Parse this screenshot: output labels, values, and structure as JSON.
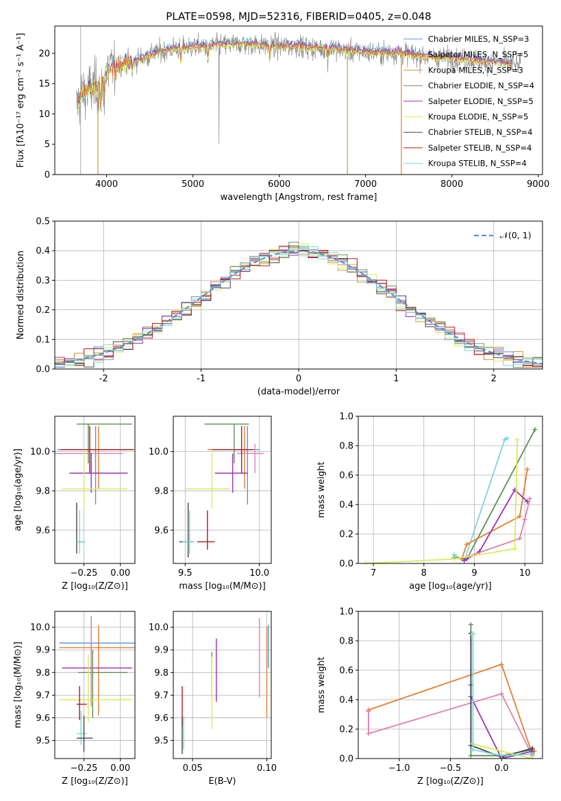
{
  "figure_title": "PLATE=0598, MJD=52316, FIBERID=0405, z=0.048",
  "colors": {
    "chabrier_miles": "#5B8FD9",
    "salpeter_miles": "#E07F2E",
    "kroupa_miles": "#C99A3A",
    "chabrier_elodie": "#5E8C55",
    "salpeter_elodie": "#9B2FB8",
    "kroupa_elodie": "#D9EC55",
    "chabrier_stelib": "#444444",
    "salpeter_stelib": "#B01818",
    "kroupa_stelib": "#7BD6DA",
    "pink": "#E07FB0",
    "data_gray": "#888888",
    "normal_curve": "#5B8FD9"
  },
  "chart_data": [
    {
      "id": "spectrum",
      "type": "line",
      "title": "PLATE=0598, MJD=52316, FIBERID=0405, z=0.048",
      "xlabel": "wavelength [Angstrom, rest frame]",
      "ylabel": "Flux [fλ10⁻¹⁷ erg cm⁻² s⁻¹ A⁻¹]",
      "xlim": [
        3400,
        9050
      ],
      "ylim": [
        0,
        24.5
      ],
      "xticks": [
        4000,
        5000,
        6000,
        7000,
        8000,
        9000
      ],
      "yticks": [
        0,
        5,
        10,
        15,
        20
      ],
      "legend_position": "right",
      "legend": [
        {
          "name": "Chabrier MILES, N_SSP=3",
          "color_key": "chabrier_miles"
        },
        {
          "name": "Salpeter MILES, N_SSP=5",
          "color_key": "salpeter_miles"
        },
        {
          "name": "Kroupa MILES, N_SSP=3",
          "color_key": "kroupa_miles"
        },
        {
          "name": "Chabrier ELODIE, N_SSP=4",
          "color_key": "chabrier_elodie"
        },
        {
          "name": "Salpeter ELODIE, N_SSP=5",
          "color_key": "salpeter_elodie"
        },
        {
          "name": "Kroupa ELODIE, N_SSP=5",
          "color_key": "kroupa_elodie"
        },
        {
          "name": "Chabrier STELIB, N_SSP=4",
          "color_key": "chabrier_stelib"
        },
        {
          "name": "Salpeter STELIB, N_SSP=4",
          "color_key": "salpeter_stelib"
        },
        {
          "name": "Kroupa STELIB, N_SSP=4",
          "color_key": "kroupa_stelib"
        }
      ],
      "continuum": {
        "x": [
          3650,
          3700,
          3800,
          3900,
          4000,
          4100,
          4200,
          4300,
          4400,
          4600,
          4800,
          5000,
          5200,
          5400,
          5600,
          5800,
          6000,
          6200,
          6400,
          6600,
          6800,
          7000,
          7200,
          7400,
          7600,
          7800,
          8000,
          8200,
          8400,
          8600,
          8800
        ],
        "y": [
          11,
          13,
          14,
          14.5,
          17,
          18,
          18.3,
          18.6,
          19.2,
          20.2,
          20.8,
          21,
          21.2,
          21.4,
          21.5,
          21.3,
          21.1,
          21.2,
          20.8,
          20.8,
          20.4,
          20.2,
          20.1,
          20.1,
          19.6,
          19.3,
          19.2,
          18.9,
          18.6,
          18.4,
          18
        ]
      },
      "spikes": [
        {
          "x": 3900,
          "y": 0,
          "color_key": "kroupa_miles"
        },
        {
          "x": 6790,
          "y": 0,
          "color_key": "kroupa_miles"
        },
        {
          "x": 7415,
          "y": 0,
          "color_key": "salpeter_miles"
        }
      ]
    },
    {
      "id": "residuals",
      "type": "histogram",
      "xlabel": "(data-model)/error",
      "ylabel": "Normed distribution",
      "xlim": [
        -2.5,
        2.5
      ],
      "ylim": [
        0,
        0.5
      ],
      "xticks": [
        -2,
        -1,
        0,
        1,
        2
      ],
      "yticks": [
        0.0,
        0.1,
        0.2,
        0.3,
        0.4,
        0.5
      ],
      "grid": true,
      "bin_width": 0.1,
      "legend": [
        {
          "name": "𝒩(0, 1)",
          "color_key": "normal_curve",
          "style": "dashed"
        }
      ],
      "legend_position": "top-right",
      "series_color_keys": [
        "chabrier_miles",
        "salpeter_miles",
        "kroupa_miles",
        "chabrier_elodie",
        "salpeter_elodie",
        "kroupa_elodie",
        "chabrier_stelib",
        "salpeter_stelib",
        "kroupa_stelib"
      ]
    },
    {
      "id": "z_vs_age",
      "type": "errorbar",
      "xlabel": "Z [log₁₀(Z/Z⊙)]",
      "ylabel": "age  [log₁₀(age/yr)]",
      "xlim": [
        -0.45,
        0.1
      ],
      "ylim": [
        9.43,
        10.18
      ],
      "xticks": [
        -0.25,
        0.0
      ],
      "xtick_labels": [
        "−0.25",
        "0.00"
      ],
      "yticks": [
        9.6,
        9.8,
        10.0
      ],
      "yerr_ticks": [
        9.6,
        9.8,
        10.0
      ],
      "grid": true,
      "points": [
        {
          "x": -0.22,
          "y": 10.14,
          "xerr": [
            0.08,
            0.3
          ],
          "yerr": [
            0.2,
            0.0
          ],
          "color_key": "chabrier_elodie"
        },
        {
          "x": -0.15,
          "y": 10.01,
          "xerr": [
            0.28,
            0.25
          ],
          "yerr": [
            0.2,
            0.12
          ],
          "color_key": "salpeter_miles"
        },
        {
          "x": -0.17,
          "y": 10.01,
          "xerr": [
            0.26,
            0.22
          ],
          "yerr": [
            0.28,
            0.12
          ],
          "color_key": "chabrier_miles"
        },
        {
          "x": -0.2,
          "y": 9.99,
          "xerr": [
            0.25,
            0.22
          ],
          "yerr": [
            0.1,
            0.0
          ],
          "color_key": "pink"
        },
        {
          "x": -0.21,
          "y": 10.01,
          "xerr": [
            0.2,
            0.3
          ],
          "yerr": [
            0.12,
            0.12
          ],
          "color_key": "salpeter_stelib"
        },
        {
          "x": -0.2,
          "y": 9.89,
          "xerr": [
            0.15,
            0.25
          ],
          "yerr": [
            0.1,
            0.1
          ],
          "color_key": "salpeter_elodie"
        },
        {
          "x": -0.25,
          "y": 9.81,
          "xerr": [
            0.15,
            0.3
          ],
          "yerr": [
            0.1,
            0.2
          ],
          "color_key": "kroupa_elodie"
        },
        {
          "x": -0.3,
          "y": 9.54,
          "xerr": [
            0.0,
            0.05
          ],
          "yerr": [
            0.06,
            0.2
          ],
          "color_key": "chabrier_stelib"
        },
        {
          "x": -0.28,
          "y": 9.54,
          "xerr": [
            0.02,
            0.04
          ],
          "yerr": [
            0.06,
            0.16
          ],
          "color_key": "kroupa_stelib"
        }
      ]
    },
    {
      "id": "mass_vs_age",
      "type": "errorbar",
      "xlabel": "mass [log₁₀(M/M⊙)]",
      "ylabel": "",
      "xlim": [
        9.42,
        10.08
      ],
      "ylim": [
        9.43,
        10.18
      ],
      "xticks": [
        9.5,
        10.0
      ],
      "xtick_labels": [
        "9.5",
        "10.0"
      ],
      "yticks": [
        9.6,
        9.8,
        10.0
      ],
      "grid": true,
      "points": [
        {
          "x": 9.83,
          "y": 10.14,
          "xerr": [
            0.2,
            0.1
          ],
          "yerr": [
            0.2,
            0.0
          ],
          "color_key": "chabrier_elodie"
        },
        {
          "x": 9.9,
          "y": 10.01,
          "xerr": [
            0.25,
            0.05
          ],
          "yerr": [
            0.2,
            0.12
          ],
          "color_key": "salpeter_miles"
        },
        {
          "x": 9.92,
          "y": 10.01,
          "xerr": [
            0.2,
            0.08
          ],
          "yerr": [
            0.28,
            0.12
          ],
          "color_key": "chabrier_miles"
        },
        {
          "x": 9.97,
          "y": 9.99,
          "xerr": [
            0.12,
            0.06
          ],
          "yerr": [
            0.1,
            0.05
          ],
          "color_key": "pink"
        },
        {
          "x": 9.88,
          "y": 10.01,
          "xerr": [
            0.2,
            0.08
          ],
          "yerr": [
            0.12,
            0.12
          ],
          "color_key": "salpeter_stelib"
        },
        {
          "x": 9.82,
          "y": 9.89,
          "xerr": [
            0.12,
            0.1
          ],
          "yerr": [
            0.1,
            0.1
          ],
          "color_key": "salpeter_elodie"
        },
        {
          "x": 9.68,
          "y": 9.81,
          "xerr": [
            0.18,
            0.12
          ],
          "yerr": [
            0.1,
            0.2
          ],
          "color_key": "kroupa_elodie"
        },
        {
          "x": 9.65,
          "y": 9.54,
          "xerr": [
            0.07,
            0.05
          ],
          "yerr": [
            0.04,
            0.16
          ],
          "color_key": "salpeter_stelib"
        },
        {
          "x": 9.52,
          "y": 9.54,
          "xerr": [
            0.06,
            0.04
          ],
          "yerr": [
            0.08,
            0.2
          ],
          "color_key": "chabrier_stelib"
        },
        {
          "x": 9.53,
          "y": 9.54,
          "xerr": [
            0.05,
            0.03
          ],
          "yerr": [
            0.06,
            0.16
          ],
          "color_key": "kroupa_stelib"
        }
      ]
    },
    {
      "id": "age_mass_weight",
      "type": "line",
      "xlabel": "age  [log₁₀(age/yr)]",
      "ylabel": "mass weight",
      "xlim": [
        6.7,
        10.35
      ],
      "ylim": [
        0,
        1
      ],
      "xticks": [
        7,
        8,
        9,
        10
      ],
      "yticks": [
        0.0,
        0.2,
        0.4,
        0.6,
        0.8,
        1.0
      ],
      "grid": true,
      "series": [
        {
          "color_key": "kroupa_stelib",
          "x": [
            8.6,
            8.8,
            9.6,
            9.65
          ],
          "y": [
            0.06,
            0.02,
            0.84,
            0.85
          ]
        },
        {
          "color_key": "chabrier_elodie",
          "x": [
            8.6,
            8.85,
            10.2
          ],
          "y": [
            0.04,
            0.03,
            0.91
          ]
        },
        {
          "color_key": "salpeter_miles",
          "x": [
            8.75,
            8.85,
            9.9,
            10.05
          ],
          "y": [
            0.03,
            0.13,
            0.32,
            0.64
          ]
        },
        {
          "color_key": "salpeter_elodie",
          "x": [
            8.8,
            9.1,
            9.8,
            10.05
          ],
          "y": [
            0.02,
            0.08,
            0.5,
            0.42
          ]
        },
        {
          "color_key": "pink",
          "x": [
            8.9,
            9.9,
            10.0,
            10.1
          ],
          "y": [
            0.05,
            0.17,
            0.3,
            0.44
          ]
        },
        {
          "color_key": "kroupa_elodie",
          "x": [
            6.85,
            8.6,
            9.8,
            9.85
          ],
          "y": [
            0.0,
            0.03,
            0.1,
            0.84
          ]
        }
      ]
    },
    {
      "id": "z_vs_mass",
      "type": "errorbar",
      "xlabel": "Z [log₁₀(Z/Z⊙)]",
      "ylabel": "mass [log₁₀(M/M⊙)]",
      "xlim": [
        -0.45,
        0.1
      ],
      "ylim": [
        9.42,
        10.07
      ],
      "xticks": [
        -0.25,
        0.0
      ],
      "xtick_labels": [
        "−0.25",
        "0.00"
      ],
      "yticks": [
        9.5,
        9.6,
        9.7,
        9.8,
        9.9,
        10.0
      ],
      "grid": true,
      "points": [
        {
          "x": -0.2,
          "y": 9.93,
          "xerr": [
            0.22,
            0.3
          ],
          "yerr": [
            0.05,
            0.12
          ],
          "color_key": "chabrier_miles"
        },
        {
          "x": -0.15,
          "y": 9.91,
          "xerr": [
            0.27,
            0.25
          ],
          "yerr": [
            0.3,
            0.1
          ],
          "color_key": "salpeter_miles"
        },
        {
          "x": -0.2,
          "y": 9.82,
          "xerr": [
            0.2,
            0.28
          ],
          "yerr": [
            0.1,
            0.12
          ],
          "color_key": "salpeter_elodie"
        },
        {
          "x": -0.19,
          "y": 9.8,
          "xerr": [
            0.1,
            0.24
          ],
          "yerr": [
            0.2,
            0.1
          ],
          "color_key": "chabrier_elodie"
        },
        {
          "x": -0.22,
          "y": 9.68,
          "xerr": [
            0.2,
            0.3
          ],
          "yerr": [
            0.1,
            0.2
          ],
          "color_key": "kroupa_elodie"
        },
        {
          "x": -0.28,
          "y": 9.66,
          "xerr": [
            0.02,
            0.05
          ],
          "yerr": [
            0.07,
            0.08
          ],
          "color_key": "salpeter_stelib"
        },
        {
          "x": -0.27,
          "y": 9.53,
          "xerr": [
            0.03,
            0.04
          ],
          "yerr": [
            0.05,
            0.1
          ],
          "color_key": "kroupa_stelib"
        },
        {
          "x": -0.25,
          "y": 9.51,
          "xerr": [
            0.05,
            0.06
          ],
          "yerr": [
            0.06,
            0.1
          ],
          "color_key": "chabrier_stelib"
        },
        {
          "x": -0.2,
          "y": 9.85,
          "xerr": [
            0.0,
            0.0
          ],
          "yerr": [
            0.2,
            0.19
          ],
          "color_key": "pink"
        }
      ]
    },
    {
      "id": "ebv_vs_mass",
      "type": "errorbar",
      "xlabel": "E(B-V)",
      "ylabel": "",
      "xlim": [
        0.037,
        0.103
      ],
      "ylim": [
        9.42,
        10.07
      ],
      "xticks": [
        0.05,
        0.1
      ],
      "xtick_labels": [
        "0.05",
        "0.10"
      ],
      "yticks": [
        9.5,
        9.6,
        9.7,
        9.8,
        9.9,
        10.0
      ],
      "grid": true,
      "points": [
        {
          "x": 0.043,
          "y": 9.66,
          "yerr": [
            0.1,
            0.08
          ],
          "color_key": "salpeter_stelib"
        },
        {
          "x": 0.043,
          "y": 9.52,
          "yerr": [
            0.08,
            0.08
          ],
          "color_key": "chabrier_stelib"
        },
        {
          "x": 0.044,
          "y": 9.53,
          "yerr": [
            0.07,
            0.08
          ],
          "color_key": "kroupa_stelib"
        },
        {
          "x": 0.063,
          "y": 9.8,
          "yerr": [
            0.1,
            0.09
          ],
          "color_key": "chabrier_elodie"
        },
        {
          "x": 0.063,
          "y": 9.71,
          "yerr": [
            0.16,
            0.16
          ],
          "color_key": "kroupa_elodie"
        },
        {
          "x": 0.066,
          "y": 9.82,
          "yerr": [
            0.15,
            0.13
          ],
          "color_key": "salpeter_elodie"
        },
        {
          "x": 0.095,
          "y": 9.86,
          "yerr": [
            0.17,
            0.18
          ],
          "color_key": "pink"
        },
        {
          "x": 0.1,
          "y": 9.8,
          "yerr": [
            0.2,
            0.2
          ],
          "color_key": "salpeter_miles"
        },
        {
          "x": 0.101,
          "y": 9.92,
          "yerr": [
            0.1,
            0.09
          ],
          "color_key": "chabrier_miles"
        }
      ]
    },
    {
      "id": "z_mass_weight",
      "type": "line",
      "xlabel": "Z [log₁₀(Z/Z⊙)]",
      "ylabel": "mass weight",
      "xlim": [
        -1.4,
        0.4
      ],
      "ylim": [
        0,
        1
      ],
      "xticks": [
        -1.0,
        -0.5,
        0.0
      ],
      "xtick_labels": [
        "−1.0",
        "−0.5",
        "0.0"
      ],
      "yticks": [
        0.0,
        0.2,
        0.4,
        0.6,
        0.8,
        1.0
      ],
      "grid": true,
      "series": [
        {
          "color_key": "salpeter_miles",
          "x": [
            -1.3,
            0.0,
            0.3,
            0.32
          ],
          "y": [
            0.33,
            0.64,
            0.03,
            0.05
          ]
        },
        {
          "color_key": "pink",
          "x": [
            -1.3,
            -1.3,
            0.0,
            0.3
          ],
          "y": [
            0.32,
            0.17,
            0.44,
            0.02
          ]
        },
        {
          "color_key": "chabrier_elodie",
          "x": [
            -0.3,
            -0.3,
            0.0,
            0.3
          ],
          "y": [
            0.91,
            0.02,
            0.02,
            0.06
          ]
        },
        {
          "color_key": "salpeter_elodie",
          "x": [
            -0.3,
            -0.3,
            0.0,
            0.3
          ],
          "y": [
            0.5,
            0.42,
            0.0,
            0.05
          ]
        },
        {
          "color_key": "chabrier_stelib",
          "x": [
            -0.3,
            -0.3,
            0.0,
            0.3
          ],
          "y": [
            0.85,
            0.09,
            0.01,
            0.07
          ]
        },
        {
          "color_key": "kroupa_elodie",
          "x": [
            -0.28,
            -0.28,
            0.0,
            0.3
          ],
          "y": [
            0.84,
            0.1,
            0.05,
            0.0
          ]
        },
        {
          "color_key": "kroupa_stelib",
          "x": [
            -0.28,
            -0.28,
            0.0,
            0.3
          ],
          "y": [
            0.85,
            0.06,
            0.02,
            0.03
          ]
        }
      ]
    }
  ]
}
